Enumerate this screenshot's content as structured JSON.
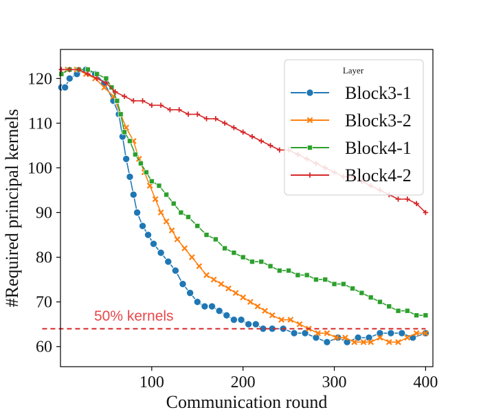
{
  "chart_data": {
    "type": "line",
    "title": "",
    "xlabel": "Communication round",
    "ylabel": "#Required principal kernels",
    "xlim": [
      0,
      408
    ],
    "ylim": [
      55.5,
      126.5
    ],
    "xticks": [
      100,
      200,
      300,
      400
    ],
    "yticks": [
      60,
      70,
      80,
      90,
      100,
      110,
      120
    ],
    "grid": false,
    "legend": {
      "title": "Layer",
      "placement": "top-right",
      "entries": [
        "Block3-1",
        "Block3-2",
        "Block4-1",
        "Block4-2"
      ]
    },
    "series": [
      {
        "name": "Block3-1",
        "color": "#1f77b4",
        "marker": "circle",
        "points": [
          [
            1,
            118
          ],
          [
            5,
            118
          ],
          [
            10,
            120
          ],
          [
            18,
            121
          ],
          [
            28,
            122
          ],
          [
            38,
            121
          ],
          [
            48,
            119
          ],
          [
            58,
            115
          ],
          [
            64,
            112
          ],
          [
            68,
            107
          ],
          [
            72,
            102
          ],
          [
            76,
            98
          ],
          [
            80,
            94
          ],
          [
            84,
            90
          ],
          [
            90,
            87
          ],
          [
            96,
            85
          ],
          [
            102,
            83
          ],
          [
            110,
            81
          ],
          [
            118,
            79
          ],
          [
            126,
            77
          ],
          [
            134,
            74
          ],
          [
            142,
            72
          ],
          [
            150,
            70
          ],
          [
            158,
            69
          ],
          [
            166,
            69
          ],
          [
            174,
            68
          ],
          [
            182,
            67
          ],
          [
            190,
            66
          ],
          [
            198,
            66
          ],
          [
            206,
            65
          ],
          [
            214,
            65
          ],
          [
            222,
            64
          ],
          [
            232,
            64
          ],
          [
            244,
            64
          ],
          [
            256,
            63
          ],
          [
            268,
            63
          ],
          [
            280,
            62
          ],
          [
            292,
            61
          ],
          [
            304,
            62
          ],
          [
            314,
            61
          ],
          [
            326,
            62
          ],
          [
            338,
            62
          ],
          [
            350,
            63
          ],
          [
            362,
            63
          ],
          [
            374,
            63
          ],
          [
            386,
            62
          ],
          [
            400,
            63
          ]
        ]
      },
      {
        "name": "Block3-2",
        "color": "#ff7f0e",
        "marker": "x",
        "points": [
          [
            1,
            121
          ],
          [
            8,
            122
          ],
          [
            18,
            122
          ],
          [
            28,
            121
          ],
          [
            38,
            120
          ],
          [
            48,
            118
          ],
          [
            58,
            116
          ],
          [
            66,
            112
          ],
          [
            72,
            109
          ],
          [
            80,
            106
          ],
          [
            86,
            102
          ],
          [
            92,
            99
          ],
          [
            98,
            96
          ],
          [
            104,
            93
          ],
          [
            110,
            90
          ],
          [
            116,
            88
          ],
          [
            122,
            86
          ],
          [
            128,
            84
          ],
          [
            136,
            82
          ],
          [
            144,
            80
          ],
          [
            152,
            78
          ],
          [
            160,
            76
          ],
          [
            168,
            75
          ],
          [
            176,
            74
          ],
          [
            184,
            73
          ],
          [
            192,
            72
          ],
          [
            200,
            71
          ],
          [
            208,
            70
          ],
          [
            216,
            69
          ],
          [
            224,
            68
          ],
          [
            232,
            67
          ],
          [
            242,
            66
          ],
          [
            252,
            66
          ],
          [
            262,
            65
          ],
          [
            272,
            64
          ],
          [
            282,
            63
          ],
          [
            292,
            63
          ],
          [
            302,
            62
          ],
          [
            312,
            62
          ],
          [
            322,
            61
          ],
          [
            332,
            61
          ],
          [
            340,
            61
          ],
          [
            350,
            62
          ],
          [
            360,
            61
          ],
          [
            370,
            61
          ],
          [
            380,
            62
          ],
          [
            390,
            63
          ],
          [
            400,
            63
          ]
        ]
      },
      {
        "name": "Block4-1",
        "color": "#2ca02c",
        "marker": "square",
        "points": [
          [
            1,
            121
          ],
          [
            10,
            122
          ],
          [
            20,
            122
          ],
          [
            30,
            122
          ],
          [
            40,
            121
          ],
          [
            50,
            120
          ],
          [
            56,
            118
          ],
          [
            62,
            115
          ],
          [
            66,
            112
          ],
          [
            70,
            108
          ],
          [
            76,
            106
          ],
          [
            82,
            103
          ],
          [
            88,
            101
          ],
          [
            94,
            99
          ],
          [
            100,
            97
          ],
          [
            108,
            96
          ],
          [
            116,
            94
          ],
          [
            124,
            92
          ],
          [
            132,
            90
          ],
          [
            140,
            89
          ],
          [
            150,
            87
          ],
          [
            160,
            85
          ],
          [
            170,
            84
          ],
          [
            180,
            82
          ],
          [
            190,
            81
          ],
          [
            200,
            80
          ],
          [
            210,
            79
          ],
          [
            220,
            79
          ],
          [
            230,
            78
          ],
          [
            240,
            77
          ],
          [
            250,
            77
          ],
          [
            260,
            76
          ],
          [
            270,
            76
          ],
          [
            280,
            75
          ],
          [
            290,
            75
          ],
          [
            300,
            74
          ],
          [
            310,
            74
          ],
          [
            320,
            73
          ],
          [
            330,
            72
          ],
          [
            340,
            71
          ],
          [
            350,
            70
          ],
          [
            360,
            69
          ],
          [
            370,
            68
          ],
          [
            380,
            68
          ],
          [
            390,
            67
          ],
          [
            400,
            67
          ]
        ]
      },
      {
        "name": "Block4-2",
        "color": "#d62728",
        "marker": "plus",
        "points": [
          [
            1,
            122
          ],
          [
            10,
            122
          ],
          [
            20,
            122
          ],
          [
            30,
            121
          ],
          [
            40,
            120
          ],
          [
            50,
            119
          ],
          [
            60,
            117
          ],
          [
            70,
            116
          ],
          [
            80,
            115
          ],
          [
            90,
            115
          ],
          [
            100,
            114
          ],
          [
            110,
            114
          ],
          [
            120,
            113
          ],
          [
            130,
            113
          ],
          [
            140,
            112
          ],
          [
            150,
            112
          ],
          [
            160,
            111
          ],
          [
            170,
            111
          ],
          [
            180,
            110
          ],
          [
            190,
            109
          ],
          [
            200,
            108
          ],
          [
            210,
            107
          ],
          [
            220,
            106
          ],
          [
            230,
            105
          ],
          [
            240,
            104
          ],
          [
            250,
            104
          ],
          [
            260,
            103
          ],
          [
            270,
            102
          ],
          [
            280,
            101
          ],
          [
            290,
            100
          ],
          [
            300,
            99
          ],
          [
            310,
            98
          ],
          [
            320,
            98
          ],
          [
            330,
            97
          ],
          [
            340,
            96
          ],
          [
            350,
            95
          ],
          [
            360,
            94
          ],
          [
            370,
            93
          ],
          [
            380,
            93
          ],
          [
            390,
            92
          ],
          [
            400,
            90
          ]
        ]
      }
    ],
    "reference_line": {
      "label": "50% kernels",
      "y": 64,
      "x_range": [
        -20,
        400
      ],
      "color": "#d62728",
      "label_color": "#e8474a",
      "style": "dashed"
    }
  }
}
